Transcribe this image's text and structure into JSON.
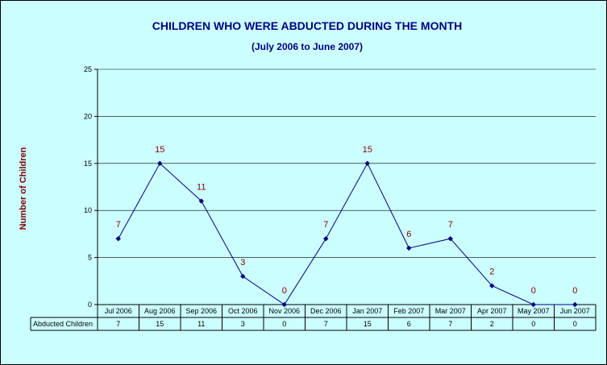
{
  "chart_data": {
    "type": "line",
    "title": "CHILDREN WHO WERE ABDUCTED DURING THE MONTH",
    "subtitle": "(July 2006 to June 2007)",
    "ylabel": "Number of Children",
    "xlabel": "",
    "ylim": [
      0,
      25
    ],
    "yticks": [
      0,
      5,
      10,
      15,
      20,
      25
    ],
    "grid": true,
    "categories": [
      "Jul 2006",
      "Aug 2006",
      "Sep 2006",
      "Oct 2006",
      "Nov 2006",
      "Dec 2006",
      "Jan 2007",
      "Feb 2007",
      "Mar 2007",
      "Apr 2007",
      "May 2007",
      "Jun 2007"
    ],
    "series": [
      {
        "name": "Abducted Children",
        "values": [
          7,
          15,
          11,
          3,
          0,
          7,
          15,
          6,
          7,
          2,
          0,
          0
        ]
      }
    ],
    "data_table": true,
    "colors": {
      "background": "#ccffff",
      "line": "#000080",
      "marker": "#000080",
      "title": "#000080",
      "data_label": "#800000",
      "axis_label": "#800000"
    }
  }
}
